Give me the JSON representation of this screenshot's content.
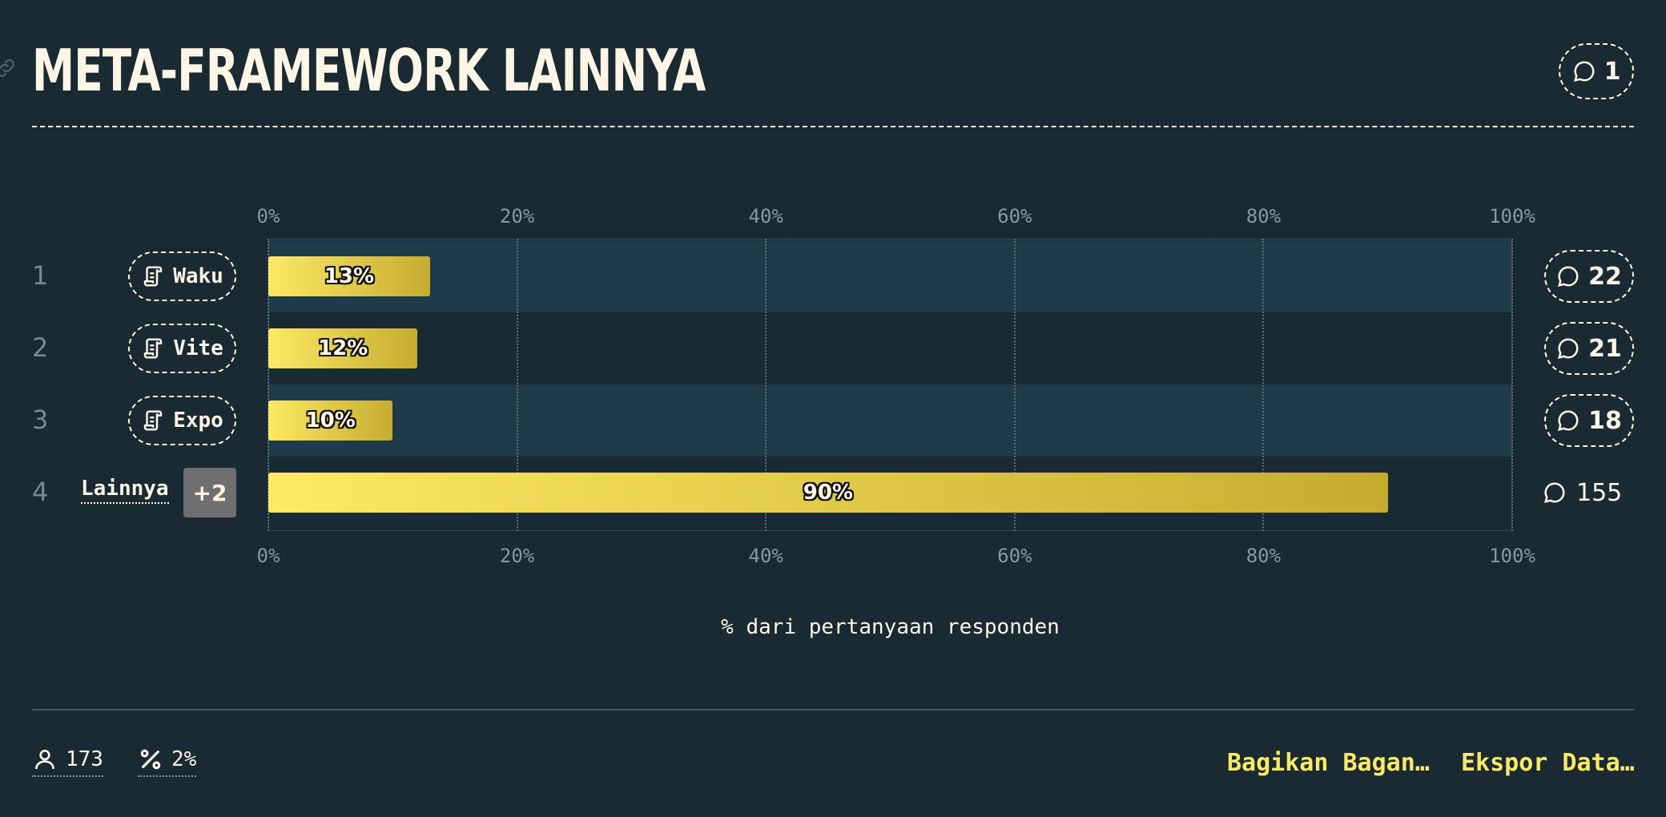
{
  "header": {
    "title": "META-FRAMEWORK LAINNYA",
    "comment_count": "1"
  },
  "chart_data": {
    "type": "bar",
    "orientation": "horizontal",
    "title": "META-FRAMEWORK LAINNYA",
    "xlabel": "% dari pertanyaan responden",
    "xlim": [
      0,
      100
    ],
    "x_ticks": [
      "0%",
      "20%",
      "40%",
      "60%",
      "80%",
      "100%"
    ],
    "grid": true,
    "categories": [
      "Waku",
      "Vite",
      "Expo",
      "Lainnya"
    ],
    "values": [
      13,
      12,
      10,
      90
    ],
    "value_labels": [
      "13%",
      "12%",
      "10%",
      "90%"
    ],
    "ranks": [
      "1",
      "2",
      "3",
      "4"
    ],
    "comment_counts": [
      "22",
      "21",
      "18",
      "155"
    ],
    "others_badge": "+2",
    "bar_gradient": [
      "#fde963",
      "#c5ac31"
    ]
  },
  "footer": {
    "respondents": "173",
    "percentage": "2%",
    "share_label": "Bagikan Bagan…",
    "export_label": "Ekspor Data…"
  },
  "colors": {
    "background": "#192a33",
    "band": "#1f3a49",
    "text": "#fdf6e6",
    "accent": "#fde963",
    "muted": "#8b97a0"
  }
}
